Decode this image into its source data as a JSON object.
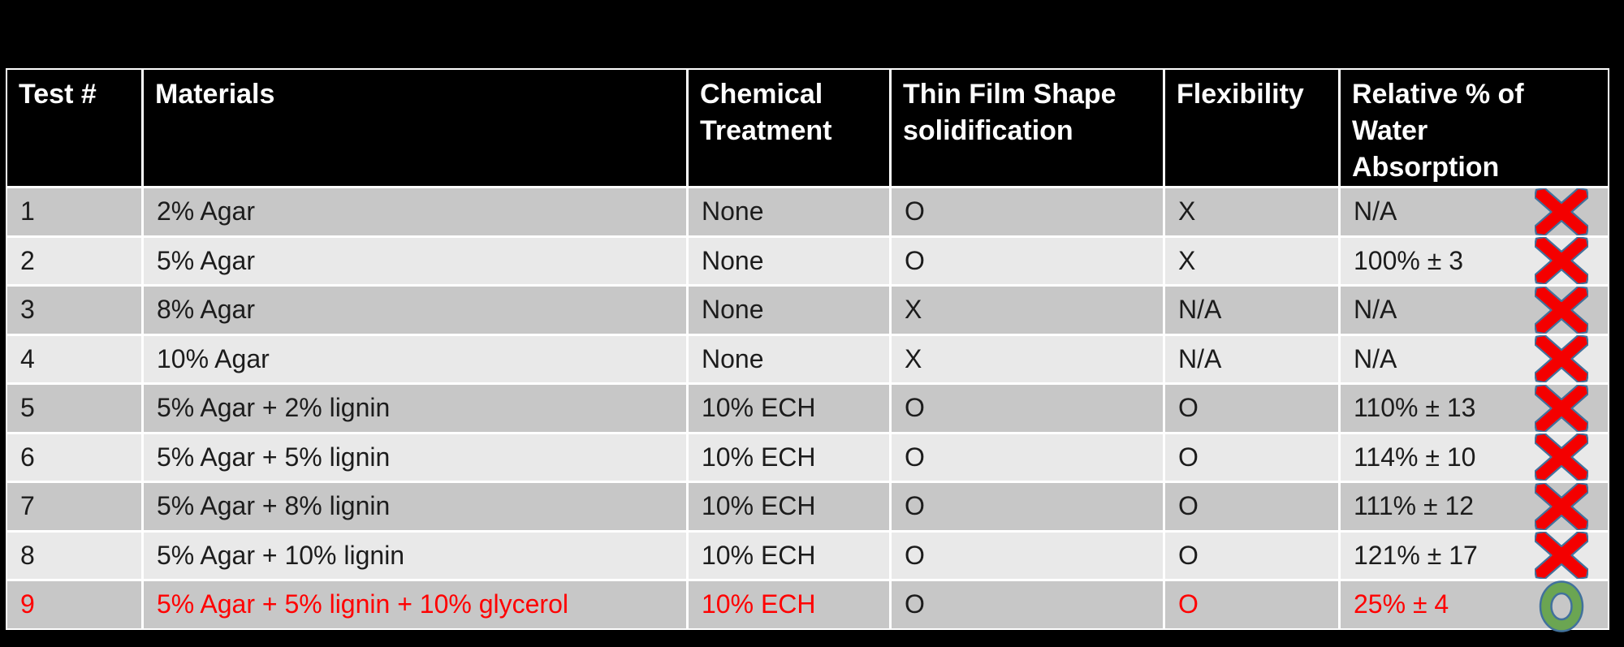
{
  "slide": {
    "background": "#000000"
  },
  "colors": {
    "table_border": "#ffffff",
    "header_bg": "#000000",
    "header_text": "#ffffff",
    "row_dark": "#c7c7c7",
    "row_light": "#e9e9e9",
    "cell_text": "#1c1c1c",
    "highlight_text": "#ff0000",
    "fail_icon_fill": "#f40000",
    "pass_icon_fill": "#6ba552",
    "icon_outline": "#41719c"
  },
  "chart_data": {
    "type": "table",
    "title": "",
    "columns": [
      {
        "key": "test-number",
        "label": "Test #"
      },
      {
        "key": "materials",
        "label": "Materials"
      },
      {
        "key": "chemical-treatment",
        "label": "Chemical\nTreatment"
      },
      {
        "key": "thin-film-shape-solidification",
        "label": "Thin Film Shape\nsolidification"
      },
      {
        "key": "flexibility",
        "label": "Flexibility"
      },
      {
        "key": "relative-water-absorption",
        "label": "Relative % of\nWater\nAbsorption"
      }
    ],
    "rows": [
      {
        "cells": [
          "1",
          "2% Agar",
          "None",
          "O",
          "X",
          "N/A"
        ],
        "mark": "fail",
        "red_cells": []
      },
      {
        "cells": [
          "2",
          "5% Agar",
          "None",
          "O",
          "X",
          "100% ± 3"
        ],
        "mark": "fail",
        "red_cells": []
      },
      {
        "cells": [
          "3",
          "8% Agar",
          "None",
          "X",
          "N/A",
          "N/A"
        ],
        "mark": "fail",
        "red_cells": []
      },
      {
        "cells": [
          "4",
          "10% Agar",
          "None",
          "X",
          "N/A",
          "N/A"
        ],
        "mark": "fail",
        "red_cells": []
      },
      {
        "cells": [
          "5",
          "5% Agar + 2% lignin",
          "10% ECH",
          "O",
          "O",
          "110% ± 13"
        ],
        "mark": "fail",
        "red_cells": []
      },
      {
        "cells": [
          "6",
          "5% Agar + 5% lignin",
          "10% ECH",
          "O",
          "O",
          "114% ± 10"
        ],
        "mark": "fail",
        "red_cells": []
      },
      {
        "cells": [
          "7",
          "5% Agar + 8% lignin",
          "10% ECH",
          "O",
          "O",
          "111% ± 12"
        ],
        "mark": "fail",
        "red_cells": []
      },
      {
        "cells": [
          "8",
          "5% Agar + 10% lignin",
          "10% ECH",
          "O",
          "O",
          "121% ± 17"
        ],
        "mark": "fail",
        "red_cells": []
      },
      {
        "cells": [
          "9",
          "5% Agar + 5% lignin + 10% glycerol",
          "10% ECH",
          "O",
          "O",
          "25% ± 4"
        ],
        "mark": "pass",
        "red_cells": [
          0,
          1,
          2,
          4,
          5
        ]
      }
    ],
    "icons": {
      "fail": "red-x-icon",
      "pass": "green-o-icon"
    }
  }
}
